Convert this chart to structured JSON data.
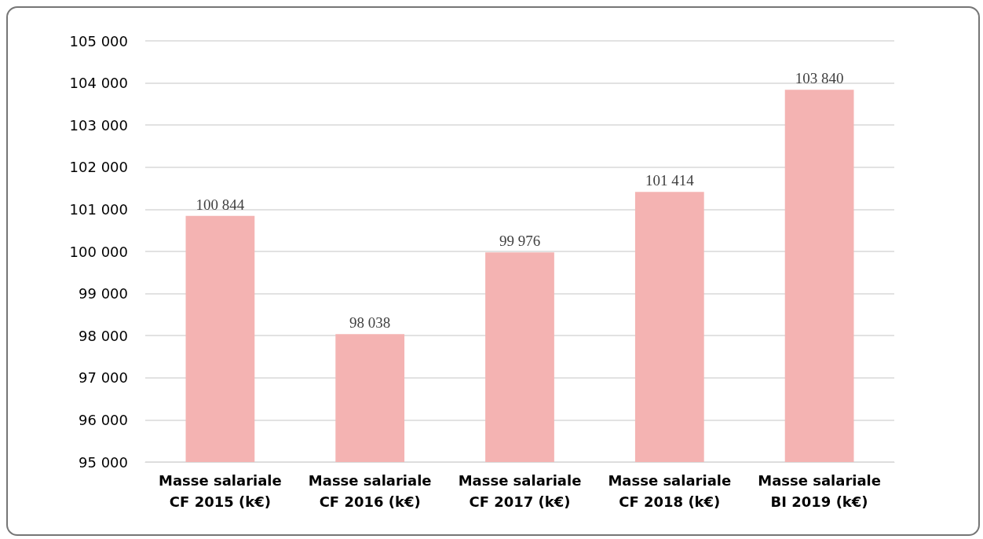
{
  "chart_data": {
    "type": "bar",
    "categories": [
      "Masse salariale\nCF 2015 (k€)",
      "Masse salariale\nCF 2016 (k€)",
      "Masse salariale\nCF 2017 (k€)",
      "Masse salariale\nCF 2018 (k€)",
      "Masse salariale\nBI 2019 (k€)"
    ],
    "values": [
      100844,
      98038,
      99976,
      101414,
      103840
    ],
    "value_labels": [
      "100 844",
      "98 038",
      "99 976",
      "101 414",
      "103 840"
    ],
    "color": "#f4b3b2",
    "ylim": [
      95000,
      105000
    ],
    "yticks": [
      {
        "value": 95000,
        "label": "95 000"
      },
      {
        "value": 96000,
        "label": "96 000"
      },
      {
        "value": 97000,
        "label": "97 000"
      },
      {
        "value": 98000,
        "label": "98 000"
      },
      {
        "value": 99000,
        "label": "99 000"
      },
      {
        "value": 100000,
        "label": "100 000"
      },
      {
        "value": 101000,
        "label": "101 000"
      },
      {
        "value": 102000,
        "label": "102 000"
      },
      {
        "value": 103000,
        "label": "103 000"
      },
      {
        "value": 104000,
        "label": "104 000"
      },
      {
        "value": 105000,
        "label": "105 000"
      }
    ],
    "grid": "y"
  }
}
